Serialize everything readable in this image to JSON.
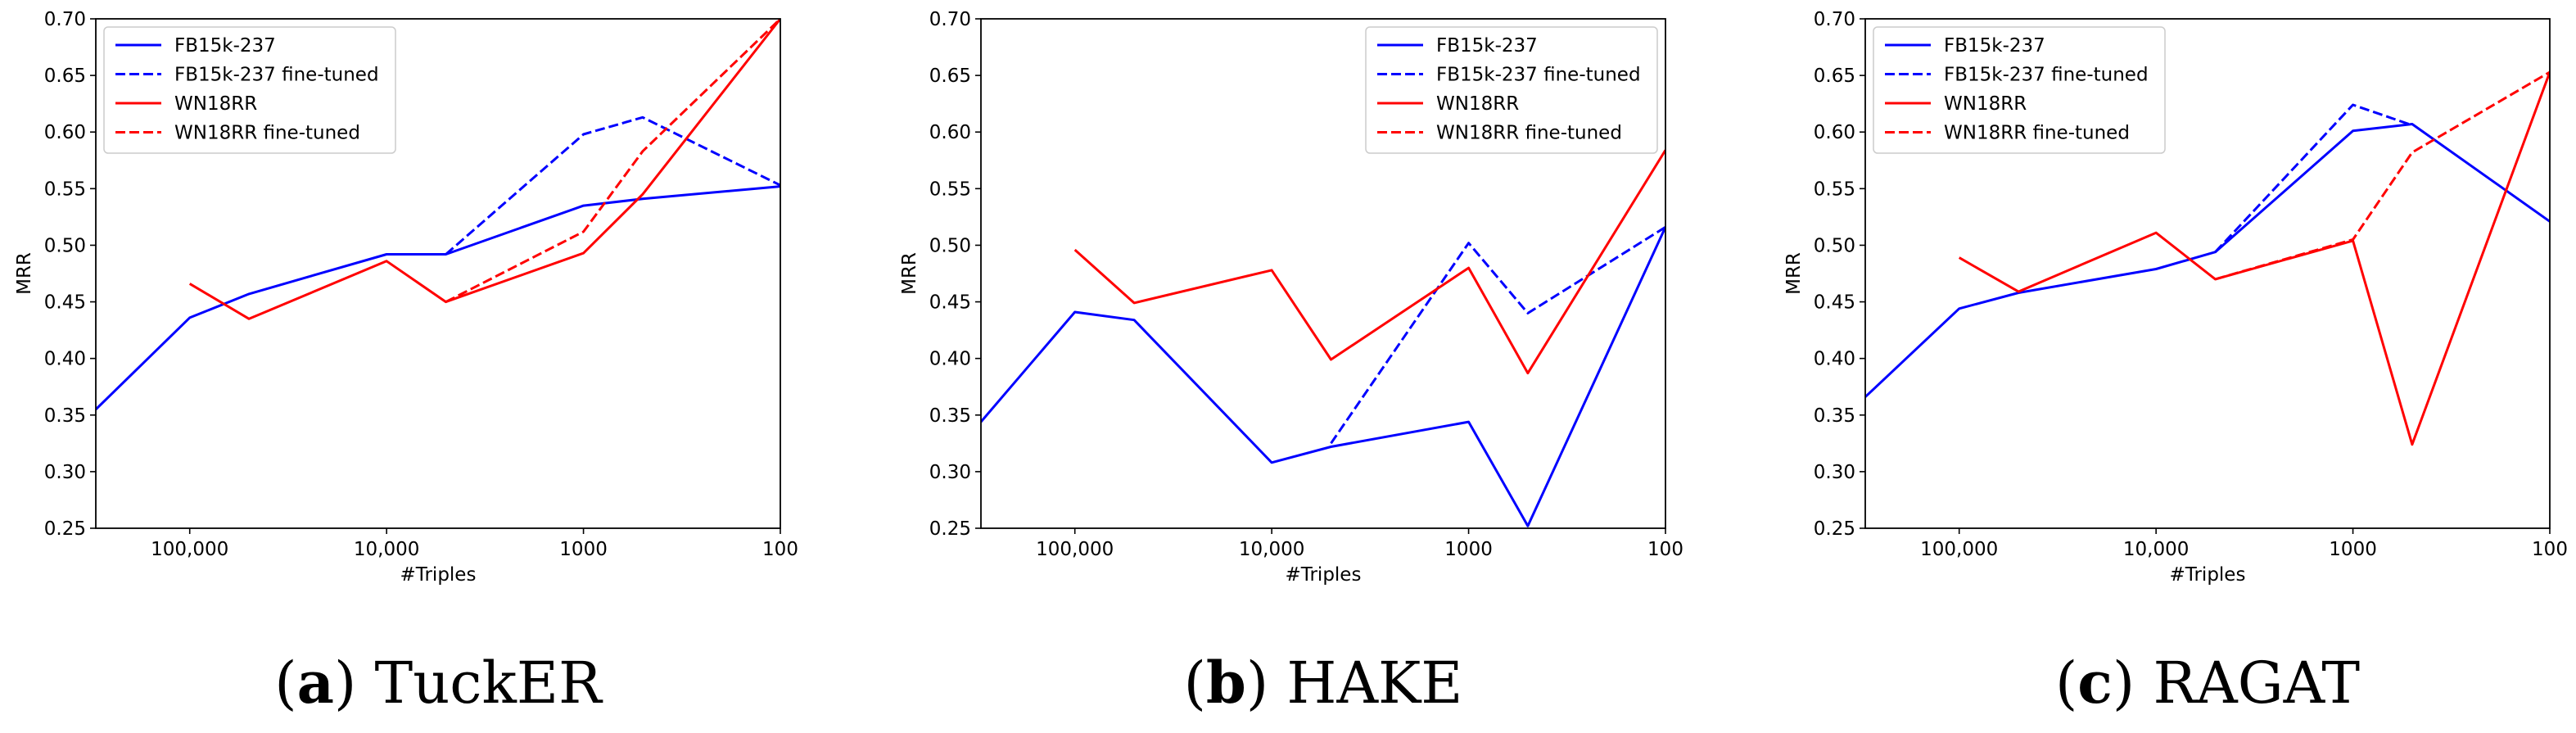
{
  "chart_data": [
    {
      "type": "line",
      "caption": {
        "letter": "a",
        "name": "TuckER"
      },
      "xlabel": "#Triples",
      "ylabel": "MRR",
      "x_scale": "log-reversed",
      "xlim": [
        300000,
        100
      ],
      "ylim": [
        0.25,
        0.7
      ],
      "x_ticks": [
        100000,
        10000,
        1000,
        100
      ],
      "x_tick_labels": [
        "100,000",
        "10,000",
        "1000",
        "100"
      ],
      "y_ticks": [
        0.25,
        0.3,
        0.35,
        0.4,
        0.45,
        0.5,
        0.55,
        0.6,
        0.65,
        0.7
      ],
      "y_tick_labels": [
        "0.25",
        "0.30",
        "0.35",
        "0.40",
        "0.45",
        "0.50",
        "0.55",
        "0.60",
        "0.65",
        "0.70"
      ],
      "legend_position": "top-left",
      "series": [
        {
          "name": "FB15k-237",
          "color": "#0000ff",
          "style": "solid",
          "points": [
            [
              300000,
              0.355
            ],
            [
              100000,
              0.436
            ],
            [
              50000,
              0.457
            ],
            [
              10000,
              0.492
            ],
            [
              5000,
              0.492
            ],
            [
              1000,
              0.535
            ],
            [
              500,
              0.541
            ],
            [
              100,
              0.552
            ]
          ]
        },
        {
          "name": "FB15k-237 fine-tuned",
          "color": "#0000ff",
          "style": "dashed",
          "points": [
            [
              5000,
              0.492
            ],
            [
              1000,
              0.598
            ],
            [
              500,
              0.613
            ],
            [
              100,
              0.553
            ]
          ]
        },
        {
          "name": "WN18RR",
          "color": "#ff0000",
          "style": "solid",
          "points": [
            [
              100000,
              0.466
            ],
            [
              50000,
              0.435
            ],
            [
              10000,
              0.486
            ],
            [
              5000,
              0.45
            ],
            [
              1000,
              0.493
            ],
            [
              500,
              0.545
            ],
            [
              100,
              0.7
            ]
          ]
        },
        {
          "name": "WN18RR fine-tuned",
          "color": "#ff0000",
          "style": "dashed",
          "points": [
            [
              5000,
              0.45
            ],
            [
              1000,
              0.512
            ],
            [
              500,
              0.583
            ],
            [
              100,
              0.7
            ]
          ]
        }
      ]
    },
    {
      "type": "line",
      "caption": {
        "letter": "b",
        "name": "HAKE"
      },
      "xlabel": "#Triples",
      "ylabel": "MRR",
      "x_scale": "log-reversed",
      "xlim": [
        300000,
        100
      ],
      "ylim": [
        0.25,
        0.7
      ],
      "x_ticks": [
        100000,
        10000,
        1000,
        100
      ],
      "x_tick_labels": [
        "100,000",
        "10,000",
        "1000",
        "100"
      ],
      "y_ticks": [
        0.25,
        0.3,
        0.35,
        0.4,
        0.45,
        0.5,
        0.55,
        0.6,
        0.65,
        0.7
      ],
      "y_tick_labels": [
        "0.25",
        "0.30",
        "0.35",
        "0.40",
        "0.45",
        "0.50",
        "0.55",
        "0.60",
        "0.65",
        "0.70"
      ],
      "legend_position": "top-right",
      "series": [
        {
          "name": "FB15k-237",
          "color": "#0000ff",
          "style": "solid",
          "points": [
            [
              300000,
              0.344
            ],
            [
              100000,
              0.441
            ],
            [
              50000,
              0.434
            ],
            [
              10000,
              0.308
            ],
            [
              5000,
              0.322
            ],
            [
              1000,
              0.344
            ],
            [
              500,
              0.252
            ],
            [
              100,
              0.516
            ]
          ]
        },
        {
          "name": "FB15k-237 fine-tuned",
          "color": "#0000ff",
          "style": "dashed",
          "points": [
            [
              5000,
              0.325
            ],
            [
              1000,
              0.502
            ],
            [
              500,
              0.44
            ],
            [
              100,
              0.516
            ]
          ]
        },
        {
          "name": "WN18RR",
          "color": "#ff0000",
          "style": "solid",
          "points": [
            [
              100000,
              0.496
            ],
            [
              50000,
              0.449
            ],
            [
              10000,
              0.478
            ],
            [
              5000,
              0.399
            ],
            [
              1000,
              0.48
            ],
            [
              500,
              0.387
            ],
            [
              100,
              0.584
            ]
          ]
        },
        {
          "name": "WN18RR fine-tuned",
          "color": "#ff0000",
          "style": "dashed",
          "points": []
        }
      ]
    },
    {
      "type": "line",
      "caption": {
        "letter": "c",
        "name": "RAGAT"
      },
      "xlabel": "#Triples",
      "ylabel": "MRR",
      "x_scale": "log-reversed",
      "xlim": [
        300000,
        100
      ],
      "ylim": [
        0.25,
        0.7
      ],
      "x_ticks": [
        100000,
        10000,
        1000,
        100
      ],
      "x_tick_labels": [
        "100,000",
        "10,000",
        "1000",
        "100"
      ],
      "y_ticks": [
        0.25,
        0.3,
        0.35,
        0.4,
        0.45,
        0.5,
        0.55,
        0.6,
        0.65,
        0.7
      ],
      "y_tick_labels": [
        "0.25",
        "0.30",
        "0.35",
        "0.40",
        "0.45",
        "0.50",
        "0.55",
        "0.60",
        "0.65",
        "0.70"
      ],
      "legend_position": "top-left",
      "series": [
        {
          "name": "FB15k-237",
          "color": "#0000ff",
          "style": "solid",
          "points": [
            [
              300000,
              0.366
            ],
            [
              100000,
              0.444
            ],
            [
              50000,
              0.458
            ],
            [
              10000,
              0.479
            ],
            [
              5000,
              0.494
            ],
            [
              1000,
              0.601
            ],
            [
              500,
              0.607
            ],
            [
              100,
              0.521
            ]
          ]
        },
        {
          "name": "FB15k-237 fine-tuned",
          "color": "#0000ff",
          "style": "dashed",
          "points": [
            [
              5000,
              0.494
            ],
            [
              1000,
              0.624
            ],
            [
              500,
              0.606
            ]
          ]
        },
        {
          "name": "WN18RR",
          "color": "#ff0000",
          "style": "solid",
          "points": [
            [
              100000,
              0.489
            ],
            [
              50000,
              0.459
            ],
            [
              10000,
              0.511
            ],
            [
              5000,
              0.47
            ],
            [
              1000,
              0.504
            ],
            [
              500,
              0.324
            ],
            [
              100,
              0.653
            ]
          ]
        },
        {
          "name": "WN18RR fine-tuned",
          "color": "#ff0000",
          "style": "dashed",
          "points": [
            [
              5000,
              0.47
            ],
            [
              1000,
              0.505
            ],
            [
              500,
              0.582
            ],
            [
              100,
              0.653
            ]
          ]
        }
      ]
    }
  ]
}
